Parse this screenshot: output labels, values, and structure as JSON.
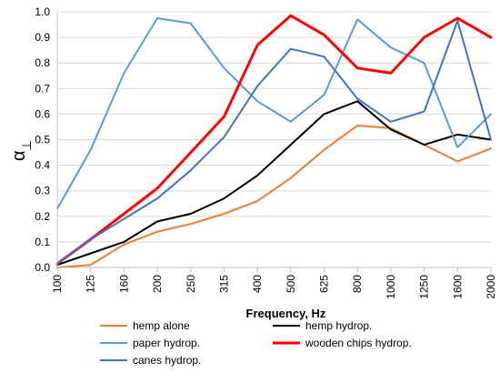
{
  "chart_data": {
    "type": "line",
    "title": "",
    "xlabel": "Frequency, Hz",
    "ylabel": {
      "main": "α",
      "sub": "⊥"
    },
    "categories": [
      "100",
      "125",
      "160",
      "200",
      "250",
      "315",
      "400",
      "500",
      "625",
      "800",
      "1000",
      "1250",
      "1600",
      "2000"
    ],
    "ylim": [
      0,
      1
    ],
    "yticks": [
      "0.0",
      "0.1",
      "0.2",
      "0.3",
      "0.4",
      "0.5",
      "0.6",
      "0.7",
      "0.8",
      "0.9",
      "1.0"
    ],
    "grid": "horizontal",
    "legend_placement": "bottom",
    "series": [
      {
        "name": "hemp  alone",
        "color": "#ED7D31",
        "width": 2,
        "values": [
          0.0,
          0.01,
          0.09,
          0.14,
          0.17,
          0.21,
          0.26,
          0.35,
          0.46,
          0.555,
          0.545,
          0.48,
          0.415,
          0.465
        ]
      },
      {
        "name": "hemp  hydrop.",
        "color": "#000000",
        "width": 2,
        "values": [
          0.01,
          0.055,
          0.1,
          0.18,
          0.21,
          0.27,
          0.36,
          0.48,
          0.6,
          0.65,
          0.54,
          0.48,
          0.52,
          0.5
        ]
      },
      {
        "name": "paper hydrop.",
        "color": "#5B9BD5",
        "width": 2,
        "values": [
          0.23,
          0.46,
          0.76,
          0.975,
          0.955,
          0.78,
          0.65,
          0.57,
          0.675,
          0.97,
          0.86,
          0.8,
          0.47,
          0.6
        ]
      },
      {
        "name": "wooden chips hydrop.",
        "color": "#FF0000",
        "width": 3,
        "values": [
          0.015,
          0.11,
          0.21,
          0.31,
          0.45,
          0.59,
          0.87,
          0.985,
          0.91,
          0.78,
          0.76,
          0.9,
          0.975,
          0.9
        ]
      },
      {
        "name": "canes  hydrop.",
        "color": "#4472C4",
        "width": 2,
        "values": [
          0.015,
          0.11,
          0.19,
          0.27,
          0.38,
          0.51,
          0.71,
          0.855,
          0.825,
          0.66,
          0.57,
          0.61,
          0.965,
          0.5
        ]
      }
    ]
  }
}
